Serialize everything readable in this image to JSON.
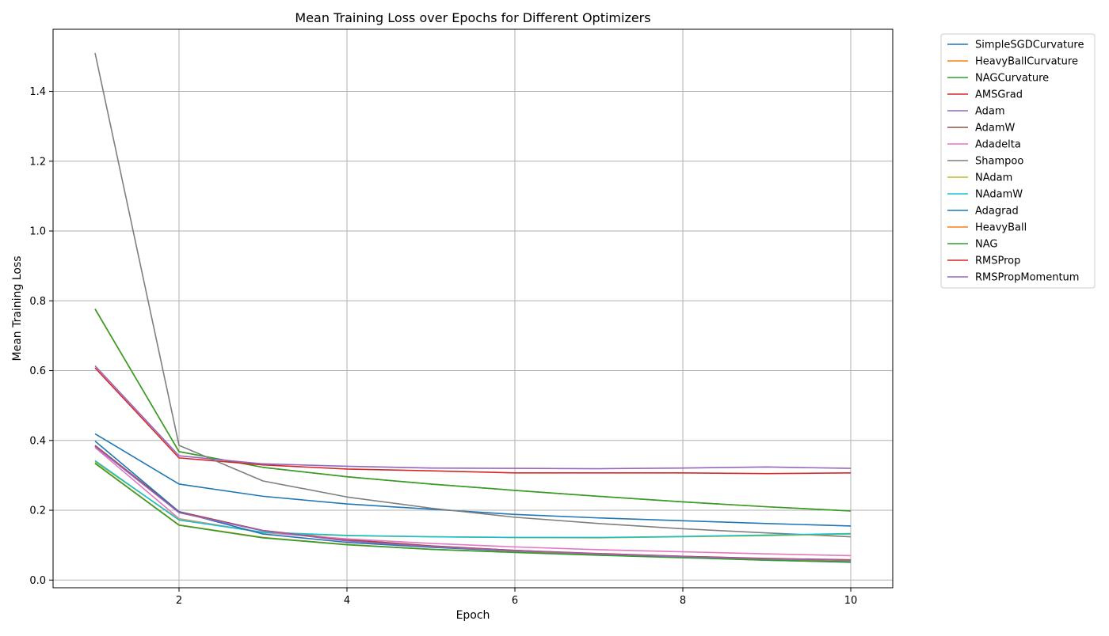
{
  "chart_data": {
    "type": "line",
    "title": "Mean Training Loss over Epochs for Different Optimizers",
    "xlabel": "Epoch",
    "ylabel": "Mean Training Loss",
    "xlim": [
      0.5,
      10.5
    ],
    "ylim": [
      -0.022,
      1.578
    ],
    "xticks": [
      2,
      4,
      6,
      8,
      10
    ],
    "yticks": [
      0.0,
      0.2,
      0.4,
      0.6,
      0.8,
      1.0,
      1.2,
      1.4
    ],
    "xtick_labels": [
      "2",
      "4",
      "6",
      "8",
      "10"
    ],
    "ytick_labels": [
      "0.0",
      "0.2",
      "0.4",
      "0.6",
      "0.8",
      "1.0",
      "1.2",
      "1.4"
    ],
    "grid": true,
    "legend_position": "outside-top-right",
    "x": [
      1,
      2,
      3,
      4,
      5,
      6,
      7,
      8,
      9,
      10
    ],
    "series": [
      {
        "name": "SimpleSGDCurvature",
        "color": "#1f77b4",
        "values": [
          0.419,
          0.275,
          0.24,
          0.218,
          0.203,
          0.188,
          0.178,
          0.17,
          0.162,
          0.155
        ]
      },
      {
        "name": "HeavyBallCurvature",
        "color": "#ff7f0e",
        "values": [
          0.776,
          0.368,
          0.323,
          0.296,
          0.275,
          0.257,
          0.24,
          0.224,
          0.21,
          0.198
        ]
      },
      {
        "name": "NAGCurvature",
        "color": "#2ca02c",
        "values": [
          0.777,
          0.368,
          0.323,
          0.296,
          0.275,
          0.257,
          0.24,
          0.224,
          0.21,
          0.198
        ]
      },
      {
        "name": "AMSGrad",
        "color": "#d62728",
        "values": [
          0.608,
          0.35,
          0.33,
          0.318,
          0.313,
          0.307,
          0.307,
          0.307,
          0.305,
          0.307
        ]
      },
      {
        "name": "Adam",
        "color": "#9467bd",
        "values": [
          0.614,
          0.356,
          0.333,
          0.326,
          0.321,
          0.32,
          0.319,
          0.321,
          0.324,
          0.32
        ]
      },
      {
        "name": "AdamW",
        "color": "#8c564b",
        "values": [
          0.386,
          0.196,
          0.142,
          0.116,
          0.098,
          0.085,
          0.075,
          0.068,
          0.061,
          0.056
        ]
      },
      {
        "name": "Adadelta",
        "color": "#e377c2",
        "values": [
          0.38,
          0.176,
          0.136,
          0.118,
          0.105,
          0.095,
          0.087,
          0.081,
          0.075,
          0.07
        ]
      },
      {
        "name": "Shampoo",
        "color": "#7f7f7f",
        "values": [
          1.51,
          0.386,
          0.284,
          0.238,
          0.206,
          0.18,
          0.162,
          0.147,
          0.135,
          0.124
        ]
      },
      {
        "name": "NAdam",
        "color": "#bcbd22",
        "values": [
          0.339,
          0.174,
          0.136,
          0.127,
          0.124,
          0.122,
          0.121,
          0.124,
          0.127,
          0.132
        ]
      },
      {
        "name": "NAdamW",
        "color": "#17becf",
        "values": [
          0.342,
          0.172,
          0.137,
          0.128,
          0.124,
          0.122,
          0.122,
          0.125,
          0.129,
          0.133
        ]
      },
      {
        "name": "Adagrad",
        "color": "#1f77b4",
        "values": [
          0.398,
          0.196,
          0.132,
          0.108,
          0.094,
          0.083,
          0.073,
          0.065,
          0.057,
          0.051
        ]
      },
      {
        "name": "HeavyBall",
        "color": "#ff7f0e",
        "values": [
          0.335,
          0.158,
          0.122,
          0.102,
          0.088,
          0.08,
          0.072,
          0.065,
          0.058,
          0.053
        ]
      },
      {
        "name": "NAG",
        "color": "#2ca02c",
        "values": [
          0.334,
          0.157,
          0.121,
          0.101,
          0.088,
          0.079,
          0.071,
          0.064,
          0.057,
          0.052
        ]
      },
      {
        "name": "RMSProp",
        "color": "#d62728",
        "values": [
          0.384,
          0.194,
          0.142,
          0.113,
          0.097,
          0.085,
          0.076,
          0.068,
          0.062,
          0.058
        ]
      },
      {
        "name": "RMSPropMomentum",
        "color": "#9467bd",
        "values": [
          0.383,
          0.193,
          0.141,
          0.112,
          0.096,
          0.084,
          0.075,
          0.067,
          0.061,
          0.057
        ]
      }
    ]
  }
}
